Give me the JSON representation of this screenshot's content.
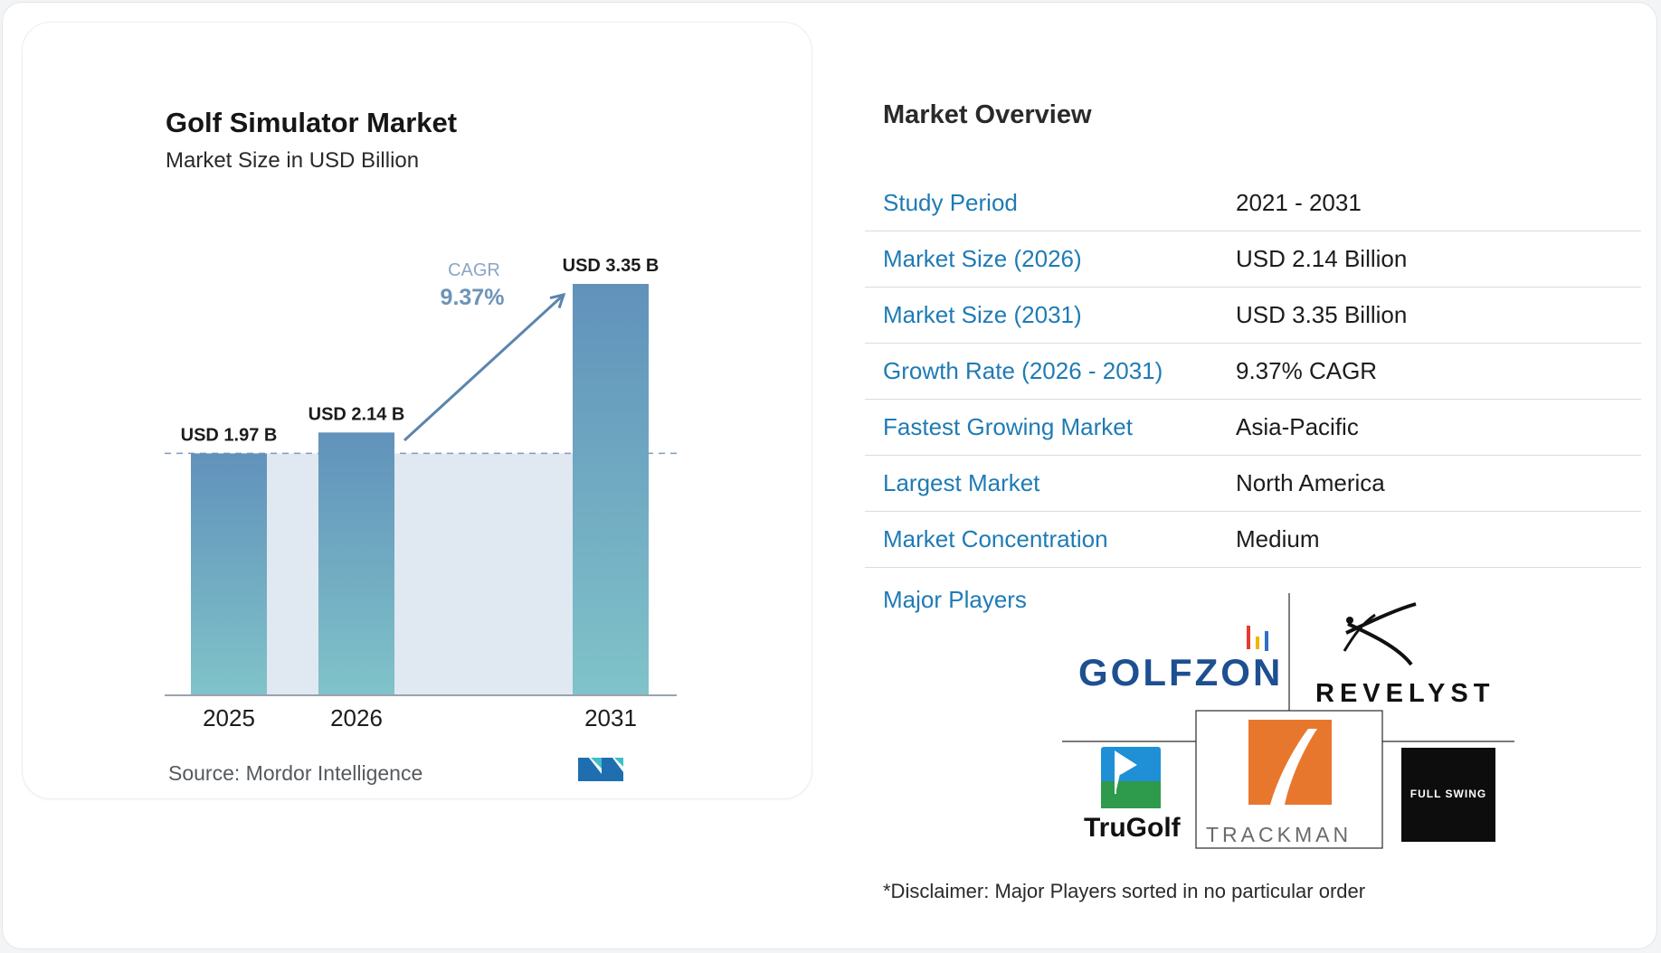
{
  "chart_data": {
    "type": "bar",
    "title": "Golf Simulator Market",
    "subtitle": "Market Size in USD Billion",
    "categories": [
      "2025",
      "2026",
      "2031"
    ],
    "values": [
      1.97,
      2.14,
      3.35
    ],
    "value_labels": [
      "USD 1.97 B",
      "USD 2.14 B",
      "USD 3.35 B"
    ],
    "cagr_label": "CAGR",
    "cagr_value": "9.37%",
    "ylim": [
      0,
      3.35
    ],
    "grid": false,
    "legend": "none",
    "colors": {
      "bar_top": "#6192bb",
      "bar_bottom": "#80c3c9",
      "band": "#e0e8f1",
      "arrow": "#5a85ad"
    }
  },
  "source": "Source: Mordor Intelligence",
  "overview": {
    "title": "Market Overview",
    "rows": [
      {
        "label": "Study Period",
        "value": "2021 - 2031"
      },
      {
        "label": "Market Size (2026)",
        "value": "USD 2.14 Billion"
      },
      {
        "label": "Market Size (2031)",
        "value": "USD 3.35 Billion"
      },
      {
        "label": "Growth Rate (2026 - 2031)",
        "value": "9.37% CAGR"
      },
      {
        "label": "Fastest Growing Market",
        "value": "Asia-Pacific"
      },
      {
        "label": "Largest Market",
        "value": "North America"
      },
      {
        "label": "Market Concentration",
        "value": "Medium"
      }
    ],
    "major_players_label": "Major Players"
  },
  "players": [
    "GOLFZON",
    "REVELYST",
    "TruGolf",
    "TRACKMAN",
    "FULL SWING"
  ],
  "disclaimer": "*Disclaimer: Major Players sorted in no particular order",
  "colors": {
    "accent": "#1f7bb4",
    "golfzon": "#1d4f91",
    "trackman": "#e8772e"
  }
}
